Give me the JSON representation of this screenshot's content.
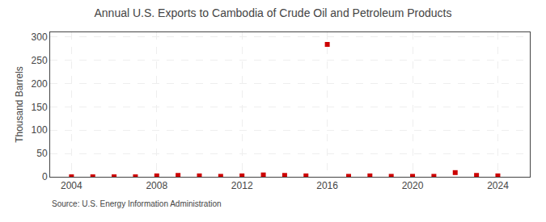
{
  "chart_data": {
    "type": "scatter",
    "title": "Annual U.S. Exports to Cambodia of Crude Oil and Petroleum Products",
    "y_label": "Thousand Barrels",
    "annotations": [
      "Source: U.S. Energy Information Administration"
    ],
    "x": [
      2004,
      2005,
      2006,
      2007,
      2008,
      2009,
      2010,
      2011,
      2012,
      2013,
      2014,
      2015,
      2016,
      2017,
      2018,
      2019,
      2020,
      2021,
      2022,
      2023,
      2024
    ],
    "values": [
      0,
      0,
      0,
      0,
      2,
      3,
      2,
      1,
      2,
      4,
      3,
      2,
      284,
      1,
      2,
      1,
      1,
      1,
      9,
      3,
      2
    ],
    "color": "#cc0000",
    "marker": "square",
    "xlim": [
      2003,
      2025.5
    ],
    "xticks": [
      2004,
      2008,
      2012,
      2016,
      2020,
      2024
    ],
    "ylim": [
      0,
      310
    ],
    "yticks": [
      0,
      50,
      100,
      150,
      200,
      250,
      300
    ],
    "grid": true
  }
}
